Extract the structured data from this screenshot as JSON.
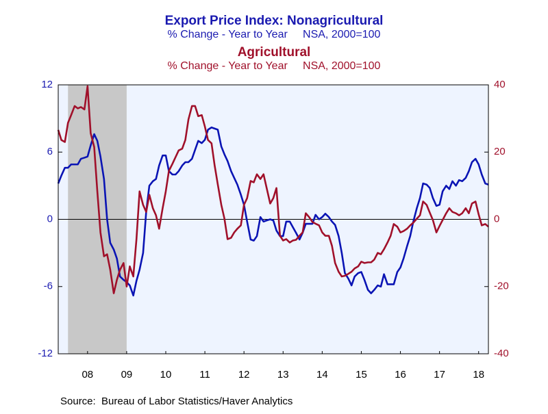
{
  "chart_data": {
    "type": "line",
    "title": "Export Price Index: Nonagricultural",
    "subtitle": "% Change - Year to Year     NSA, 2000=100",
    "title2": "Agricultural",
    "subtitle2": "% Change - Year to Year     NSA, 2000=100",
    "source": "Source:  Bureau of Labor Statistics/Haver Analytics",
    "x": [
      2007.75,
      2007.83,
      2007.92,
      2008,
      2008.08,
      2008.17,
      2008.25,
      2008.33,
      2008.42,
      2008.5,
      2008.58,
      2008.67,
      2008.75,
      2008.83,
      2008.92,
      2009,
      2009.08,
      2009.17,
      2009.25,
      2009.33,
      2009.42,
      2009.5,
      2009.58,
      2009.67,
      2009.75,
      2009.83,
      2009.92,
      2010,
      2010.08,
      2010.17,
      2010.25,
      2010.33,
      2010.42,
      2010.5,
      2010.58,
      2010.67,
      2010.75,
      2010.83,
      2010.92,
      2011,
      2011.08,
      2011.17,
      2011.25,
      2011.33,
      2011.42,
      2011.5,
      2011.58,
      2011.67,
      2011.75,
      2011.83,
      2011.92,
      2012,
      2012.08,
      2012.17,
      2012.25,
      2012.33,
      2012.42,
      2012.5,
      2012.58,
      2012.67,
      2012.75,
      2012.83,
      2012.92,
      2013,
      2013.08,
      2013.17,
      2013.25,
      2013.33,
      2013.42,
      2013.5,
      2013.58,
      2013.67,
      2013.75,
      2013.83,
      2013.92,
      2014,
      2014.08,
      2014.17,
      2014.25,
      2014.33,
      2014.42,
      2014.5,
      2014.58,
      2014.67,
      2014.75,
      2014.83,
      2014.92,
      2015,
      2015.08,
      2015.17,
      2015.25,
      2015.33,
      2015.42,
      2015.5,
      2015.58,
      2015.67,
      2015.75,
      2015.83,
      2015.92,
      2016,
      2016.08,
      2016.17,
      2016.25,
      2016.33,
      2016.42,
      2016.5,
      2016.58,
      2016.67,
      2016.75,
      2016.83,
      2016.92,
      2017,
      2017.08,
      2017.17,
      2017.25,
      2017.33,
      2017.42,
      2017.5,
      2017.58,
      2017.67,
      2017.75,
      2017.83,
      2017.92,
      2018,
      2018.08,
      2018.17,
      2018.25,
      2018.33,
      2018.42,
      2018.5,
      2018.58,
      2018.67,
      2018.75
    ],
    "series": [
      {
        "name": "Nonagricultural",
        "color": "#0a14b4",
        "axis": "y",
        "values": [
          3.2,
          3.9,
          4.6,
          4.6,
          4.9,
          4.9,
          4.9,
          5.4,
          5.5,
          5.6,
          6.6,
          7.6,
          7.0,
          5.6,
          3.6,
          0,
          -2.1,
          -2.7,
          -3.5,
          -5.1,
          -5.4,
          -5.6,
          -5.9,
          -6.8,
          -5.5,
          -4.5,
          -3,
          0.7,
          3,
          3.4,
          3.6,
          4.8,
          5.7,
          5.7,
          4.3,
          4,
          4,
          4.3,
          4.8,
          5.1,
          5.1,
          5.4,
          6.2,
          7,
          6.8,
          7.1,
          8,
          8.2,
          8.1,
          8,
          6.5,
          5.8,
          5.2,
          4.3,
          3.7,
          3.1,
          2.2,
          1.3,
          -0.2,
          -1.8,
          -1.9,
          -1.5,
          0.2,
          -0.2,
          -0.1,
          0,
          -0.1,
          -1,
          -1.5,
          -1.5,
          -0.2,
          -0.2,
          -0.7,
          -1.2,
          -1.8,
          -1.2,
          -0.4,
          -0.4,
          -0.4,
          0.4,
          0,
          0.2,
          0.5,
          0.2,
          -0.2,
          -0.5,
          -1.5,
          -3,
          -4.8,
          -5.3,
          -5.9,
          -5.1,
          -4.8,
          -4.7,
          -5.4,
          -6.3,
          -6.6,
          -6.3,
          -5.9,
          -6,
          -4.9,
          -5.8,
          -5.8,
          -5.8,
          -4.7,
          -4.3,
          -3.5,
          -2.4,
          -1.5,
          -0.2,
          1,
          1.9,
          3.2,
          3.1,
          2.8,
          1.9,
          1.2,
          1.3,
          2.5,
          3,
          2.7,
          3.4,
          3,
          3.5,
          3.4,
          3.7,
          4.3,
          5.1,
          5.4,
          4.9,
          4,
          3.2,
          3.1
        ]
      },
      {
        "name": "Agricultural",
        "color": "#a0102a",
        "axis": "y2",
        "values": [
          26.6,
          23.6,
          23,
          28.7,
          31,
          33.7,
          33,
          33.4,
          32.7,
          39.6,
          25.6,
          21.5,
          8.3,
          -3.9,
          -11,
          -10.4,
          -15,
          -22,
          -18,
          -15,
          -13,
          -20,
          -14,
          -17,
          -6,
          8.3,
          4.3,
          2.2,
          7.3,
          3.3,
          1.2,
          -2.8,
          3.3,
          8.3,
          14.4,
          16.5,
          18.5,
          20.5,
          21,
          23.6,
          29.7,
          33.7,
          33.7,
          30.7,
          31,
          27.6,
          23.6,
          22.6,
          16,
          10.4,
          4.3,
          0.2,
          -5.9,
          -5.5,
          -3.9,
          -2.8,
          -1.8,
          4.3,
          6.3,
          11.4,
          11,
          13.4,
          12,
          13.4,
          9.3,
          4.7,
          6.3,
          9.3,
          -4.9,
          -6.3,
          -5.9,
          -6.9,
          -6.3,
          -6.1,
          -4.9,
          -3.9,
          1.8,
          0.6,
          -0.8,
          -1.3,
          -1.8,
          -3.9,
          -4.9,
          -4.9,
          -7.9,
          -13,
          -15.6,
          -17,
          -16.8,
          -16.2,
          -15.6,
          -14.6,
          -14,
          -12.6,
          -13,
          -12.8,
          -12.8,
          -12,
          -10,
          -10.4,
          -8.9,
          -6.9,
          -4.9,
          -1.4,
          -2.2,
          -3.9,
          -3.5,
          -2.8,
          -1.8,
          -1,
          0.2,
          1.2,
          5.3,
          4.3,
          2,
          -0.2,
          -3.9,
          -2,
          -0.2,
          1.8,
          3.3,
          2.2,
          1.8,
          1.2,
          1.8,
          3.3,
          1.8,
          4.7,
          5.3,
          1.5,
          -1.8,
          -1.4,
          -2.2
        ]
      }
    ],
    "xlim": [
      2007.75,
      2018.75
    ],
    "xticks": [
      {
        "value": 2008.5,
        "label": "08"
      },
      {
        "value": 2009.5,
        "label": "09"
      },
      {
        "value": 2010.5,
        "label": "10"
      },
      {
        "value": 2011.5,
        "label": "11"
      },
      {
        "value": 2012.5,
        "label": "12"
      },
      {
        "value": 2013.5,
        "label": "13"
      },
      {
        "value": 2014.5,
        "label": "14"
      },
      {
        "value": 2015.5,
        "label": "15"
      },
      {
        "value": 2016.5,
        "label": "16"
      },
      {
        "value": 2017.5,
        "label": "17"
      },
      {
        "value": 2018.5,
        "label": "18"
      }
    ],
    "ylim": [
      -12,
      12
    ],
    "yticks": [
      12,
      6,
      0,
      -6,
      -12
    ],
    "y2lim": [
      -40,
      40
    ],
    "y2ticks": [
      40,
      20,
      0,
      -20,
      -40
    ],
    "zero_line": true,
    "shaded_regions": [
      [
        2008.0,
        2009.5
      ]
    ]
  }
}
